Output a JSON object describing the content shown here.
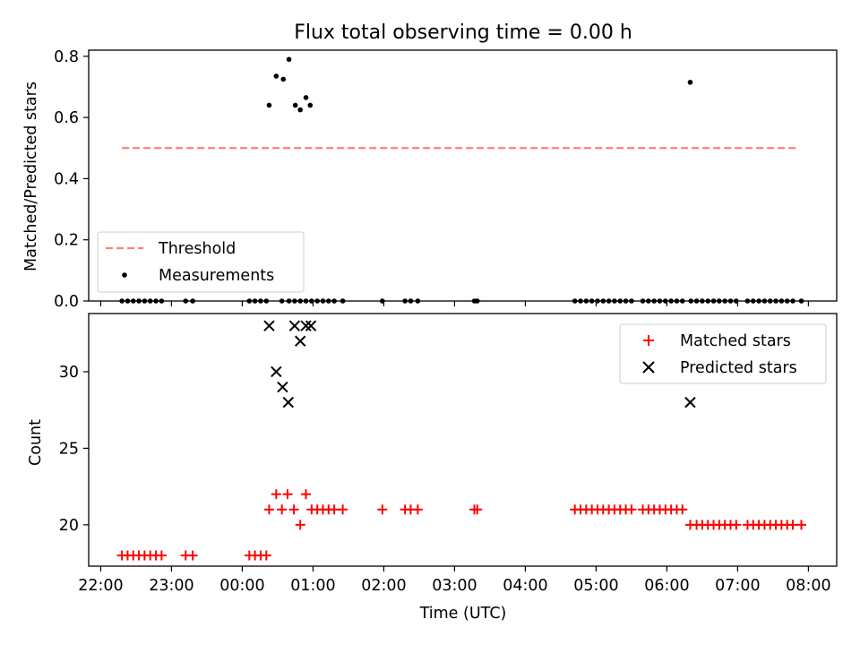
{
  "title": "Flux total observing time = 0.00 h",
  "colors": {
    "threshold": "#ff7f7f",
    "matched": "#ff0000",
    "predicted": "#000000",
    "measurement": "#000000"
  },
  "x_ticks": [
    "22:00",
    "23:00",
    "00:00",
    "01:00",
    "02:00",
    "03:00",
    "04:00",
    "05:00",
    "06:00",
    "07:00",
    "08:00"
  ],
  "x_tick_hours": [
    0,
    1,
    2,
    3,
    4,
    5,
    6,
    7,
    8,
    9,
    10
  ],
  "chart_data": [
    {
      "type": "scatter",
      "ylabel": "Matched/Predicted stars",
      "ylim": [
        0,
        0.82
      ],
      "xlim_hours_since_2200": [
        -0.17,
        10.4
      ],
      "y_ticks": [
        0.0,
        0.2,
        0.4,
        0.6,
        0.8
      ],
      "y_tick_labels": [
        "0.0",
        "0.2",
        "0.4",
        "0.6",
        "0.8"
      ],
      "threshold": {
        "name": "Threshold",
        "value": 0.5,
        "x_range_hours": [
          0.3,
          9.85
        ]
      },
      "legend": {
        "position": "lower-left",
        "entries": [
          "Threshold",
          "Measurements"
        ]
      },
      "measurements": {
        "name": "Measurements",
        "points": [
          [
            0.3,
            0
          ],
          [
            0.38,
            0
          ],
          [
            0.46,
            0
          ],
          [
            0.54,
            0
          ],
          [
            0.62,
            0
          ],
          [
            0.7,
            0
          ],
          [
            0.78,
            0
          ],
          [
            0.86,
            0
          ],
          [
            1.2,
            0
          ],
          [
            1.3,
            0
          ],
          [
            2.1,
            0
          ],
          [
            2.18,
            0
          ],
          [
            2.26,
            0
          ],
          [
            2.34,
            0
          ],
          [
            2.38,
            0.64
          ],
          [
            2.48,
            0.735
          ],
          [
            2.56,
            0
          ],
          [
            2.58,
            0.725
          ],
          [
            2.66,
            0.79
          ],
          [
            2.66,
            0
          ],
          [
            2.74,
            0
          ],
          [
            2.75,
            0.64
          ],
          [
            2.82,
            0.625
          ],
          [
            2.82,
            0
          ],
          [
            2.9,
            0.665
          ],
          [
            2.9,
            0
          ],
          [
            2.98,
            0
          ],
          [
            2.96,
            0.64
          ],
          [
            3.06,
            0
          ],
          [
            3.14,
            0
          ],
          [
            3.22,
            0
          ],
          [
            3.3,
            0
          ],
          [
            3.42,
            0
          ],
          [
            3.98,
            0
          ],
          [
            4.3,
            0
          ],
          [
            4.38,
            0
          ],
          [
            4.48,
            0
          ],
          [
            5.28,
            0
          ],
          [
            5.32,
            0
          ],
          [
            6.7,
            0
          ],
          [
            6.78,
            0
          ],
          [
            6.86,
            0
          ],
          [
            6.94,
            0
          ],
          [
            7.02,
            0
          ],
          [
            7.1,
            0
          ],
          [
            7.18,
            0
          ],
          [
            7.26,
            0
          ],
          [
            7.34,
            0
          ],
          [
            7.42,
            0
          ],
          [
            7.5,
            0
          ],
          [
            7.66,
            0
          ],
          [
            7.74,
            0
          ],
          [
            7.82,
            0
          ],
          [
            7.9,
            0
          ],
          [
            7.98,
            0
          ],
          [
            8.06,
            0
          ],
          [
            8.14,
            0
          ],
          [
            8.22,
            0
          ],
          [
            8.33,
            0.715
          ],
          [
            8.34,
            0
          ],
          [
            8.42,
            0
          ],
          [
            8.5,
            0
          ],
          [
            8.58,
            0
          ],
          [
            8.66,
            0
          ],
          [
            8.74,
            0
          ],
          [
            8.82,
            0
          ],
          [
            8.9,
            0
          ],
          [
            8.98,
            0
          ],
          [
            9.14,
            0
          ],
          [
            9.22,
            0
          ],
          [
            9.3,
            0
          ],
          [
            9.38,
            0
          ],
          [
            9.46,
            0
          ],
          [
            9.54,
            0
          ],
          [
            9.62,
            0
          ],
          [
            9.7,
            0
          ],
          [
            9.78,
            0
          ],
          [
            9.9,
            0
          ]
        ]
      }
    },
    {
      "type": "scatter",
      "xlabel": "Time (UTC)",
      "ylabel": "Count",
      "ylim": [
        17.3,
        33.8
      ],
      "xlim_hours_since_2200": [
        -0.17,
        10.4
      ],
      "y_ticks": [
        20,
        25,
        30
      ],
      "y_tick_labels": [
        "20",
        "25",
        "30"
      ],
      "legend": {
        "position": "top-right",
        "entries": [
          "Matched stars",
          "Predicted stars"
        ]
      },
      "series": [
        {
          "name": "Matched stars",
          "marker": "plus",
          "points": [
            [
              0.3,
              18
            ],
            [
              0.38,
              18
            ],
            [
              0.46,
              18
            ],
            [
              0.54,
              18
            ],
            [
              0.62,
              18
            ],
            [
              0.7,
              18
            ],
            [
              0.78,
              18
            ],
            [
              0.86,
              18
            ],
            [
              1.2,
              18
            ],
            [
              1.3,
              18
            ],
            [
              2.1,
              18
            ],
            [
              2.18,
              18
            ],
            [
              2.26,
              18
            ],
            [
              2.34,
              18
            ],
            [
              2.38,
              21
            ],
            [
              2.48,
              22
            ],
            [
              2.56,
              21
            ],
            [
              2.64,
              22
            ],
            [
              2.73,
              21
            ],
            [
              2.82,
              20
            ],
            [
              2.9,
              22
            ],
            [
              2.98,
              21
            ],
            [
              3.06,
              21
            ],
            [
              3.14,
              21
            ],
            [
              3.22,
              21
            ],
            [
              3.3,
              21
            ],
            [
              3.42,
              21
            ],
            [
              3.98,
              21
            ],
            [
              4.3,
              21
            ],
            [
              4.38,
              21
            ],
            [
              4.48,
              21
            ],
            [
              5.28,
              21
            ],
            [
              5.32,
              21
            ],
            [
              6.7,
              21
            ],
            [
              6.78,
              21
            ],
            [
              6.86,
              21
            ],
            [
              6.94,
              21
            ],
            [
              7.02,
              21
            ],
            [
              7.1,
              21
            ],
            [
              7.18,
              21
            ],
            [
              7.26,
              21
            ],
            [
              7.34,
              21
            ],
            [
              7.42,
              21
            ],
            [
              7.5,
              21
            ],
            [
              7.66,
              21
            ],
            [
              7.74,
              21
            ],
            [
              7.82,
              21
            ],
            [
              7.9,
              21
            ],
            [
              7.98,
              21
            ],
            [
              8.06,
              21
            ],
            [
              8.14,
              21
            ],
            [
              8.22,
              21
            ],
            [
              8.33,
              20
            ],
            [
              8.42,
              20
            ],
            [
              8.5,
              20
            ],
            [
              8.58,
              20
            ],
            [
              8.66,
              20
            ],
            [
              8.74,
              20
            ],
            [
              8.82,
              20
            ],
            [
              8.9,
              20
            ],
            [
              8.98,
              20
            ],
            [
              9.14,
              20
            ],
            [
              9.22,
              20
            ],
            [
              9.3,
              20
            ],
            [
              9.38,
              20
            ],
            [
              9.46,
              20
            ],
            [
              9.54,
              20
            ],
            [
              9.62,
              20
            ],
            [
              9.7,
              20
            ],
            [
              9.78,
              20
            ],
            [
              9.9,
              20
            ]
          ]
        },
        {
          "name": "Predicted stars",
          "marker": "x",
          "points": [
            [
              2.38,
              33
            ],
            [
              2.48,
              30
            ],
            [
              2.57,
              29
            ],
            [
              2.65,
              28
            ],
            [
              2.74,
              33
            ],
            [
              2.82,
              32
            ],
            [
              2.9,
              33
            ],
            [
              2.97,
              33
            ],
            [
              8.33,
              28
            ]
          ]
        }
      ]
    }
  ]
}
